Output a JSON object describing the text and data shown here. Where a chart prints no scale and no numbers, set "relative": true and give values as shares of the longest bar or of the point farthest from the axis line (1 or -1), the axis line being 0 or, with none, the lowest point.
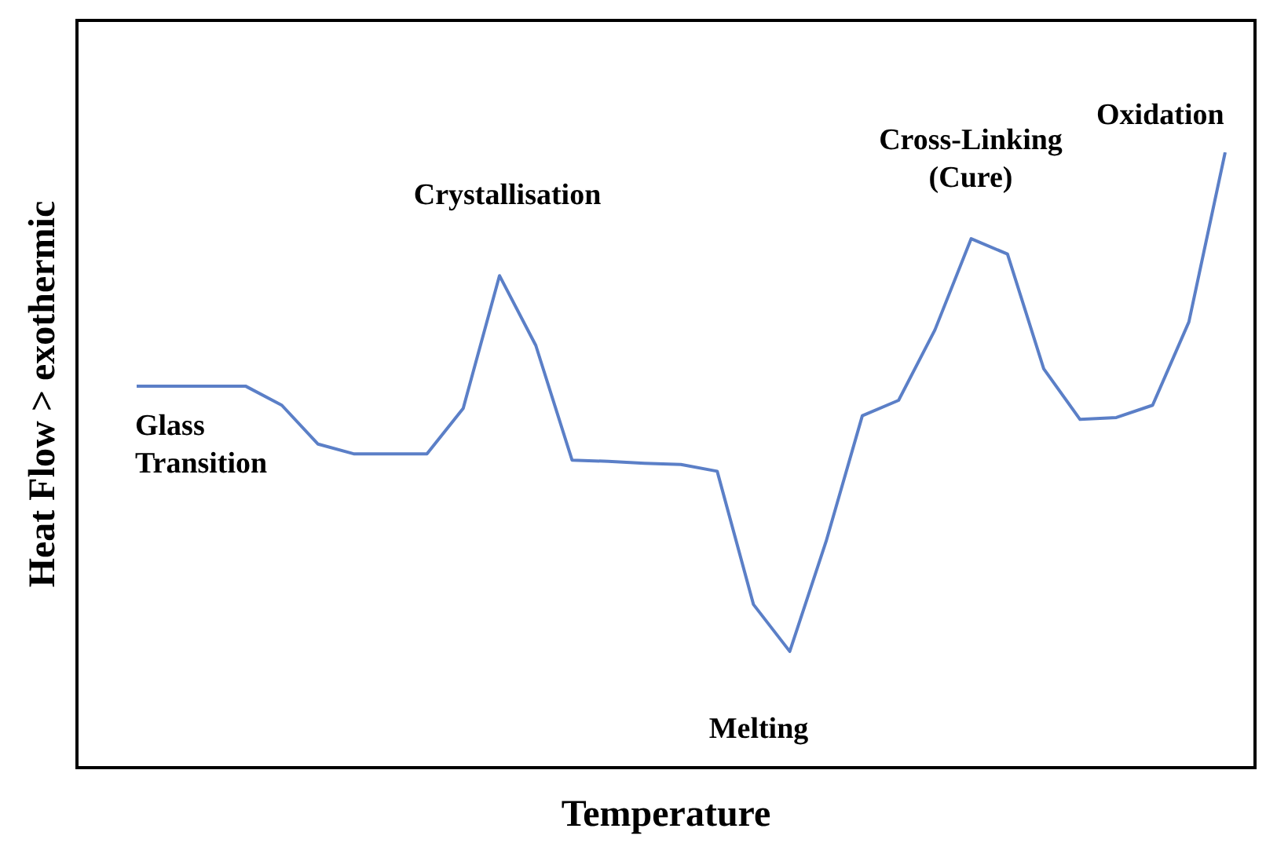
{
  "chart_data": {
    "type": "line",
    "relative": true,
    "xlabel": "Temperature",
    "ylabel": "Heat Flow > exothermic",
    "categories": [
      null,
      null,
      null,
      null,
      null,
      null,
      null,
      null,
      null,
      null,
      null,
      null,
      null,
      null,
      null,
      null,
      null,
      null,
      null,
      null,
      null,
      null,
      null,
      null,
      null,
      null,
      null,
      null,
      null,
      null,
      null
    ],
    "series": [
      {
        "color": "#5b7fc7",
        "values": [
          0.621,
          0.621,
          0.621,
          0.621,
          0.59,
          0.527,
          0.511,
          0.511,
          0.511,
          0.585,
          0.8,
          0.687,
          0.501,
          0.499,
          0.496,
          0.494,
          0.483,
          0.267,
          0.191,
          0.369,
          0.573,
          0.598,
          0.712,
          0.86,
          0.835,
          0.649,
          0.567,
          0.57,
          0.59,
          0.725,
          1
        ]
      }
    ],
    "annotations": [
      "Glass Transition",
      "Crystallisation",
      "Melting",
      "Cross-Linking (Cure)",
      "Oxidation"
    ],
    "grid": false,
    "marker": "none",
    "line_style": "solid"
  }
}
